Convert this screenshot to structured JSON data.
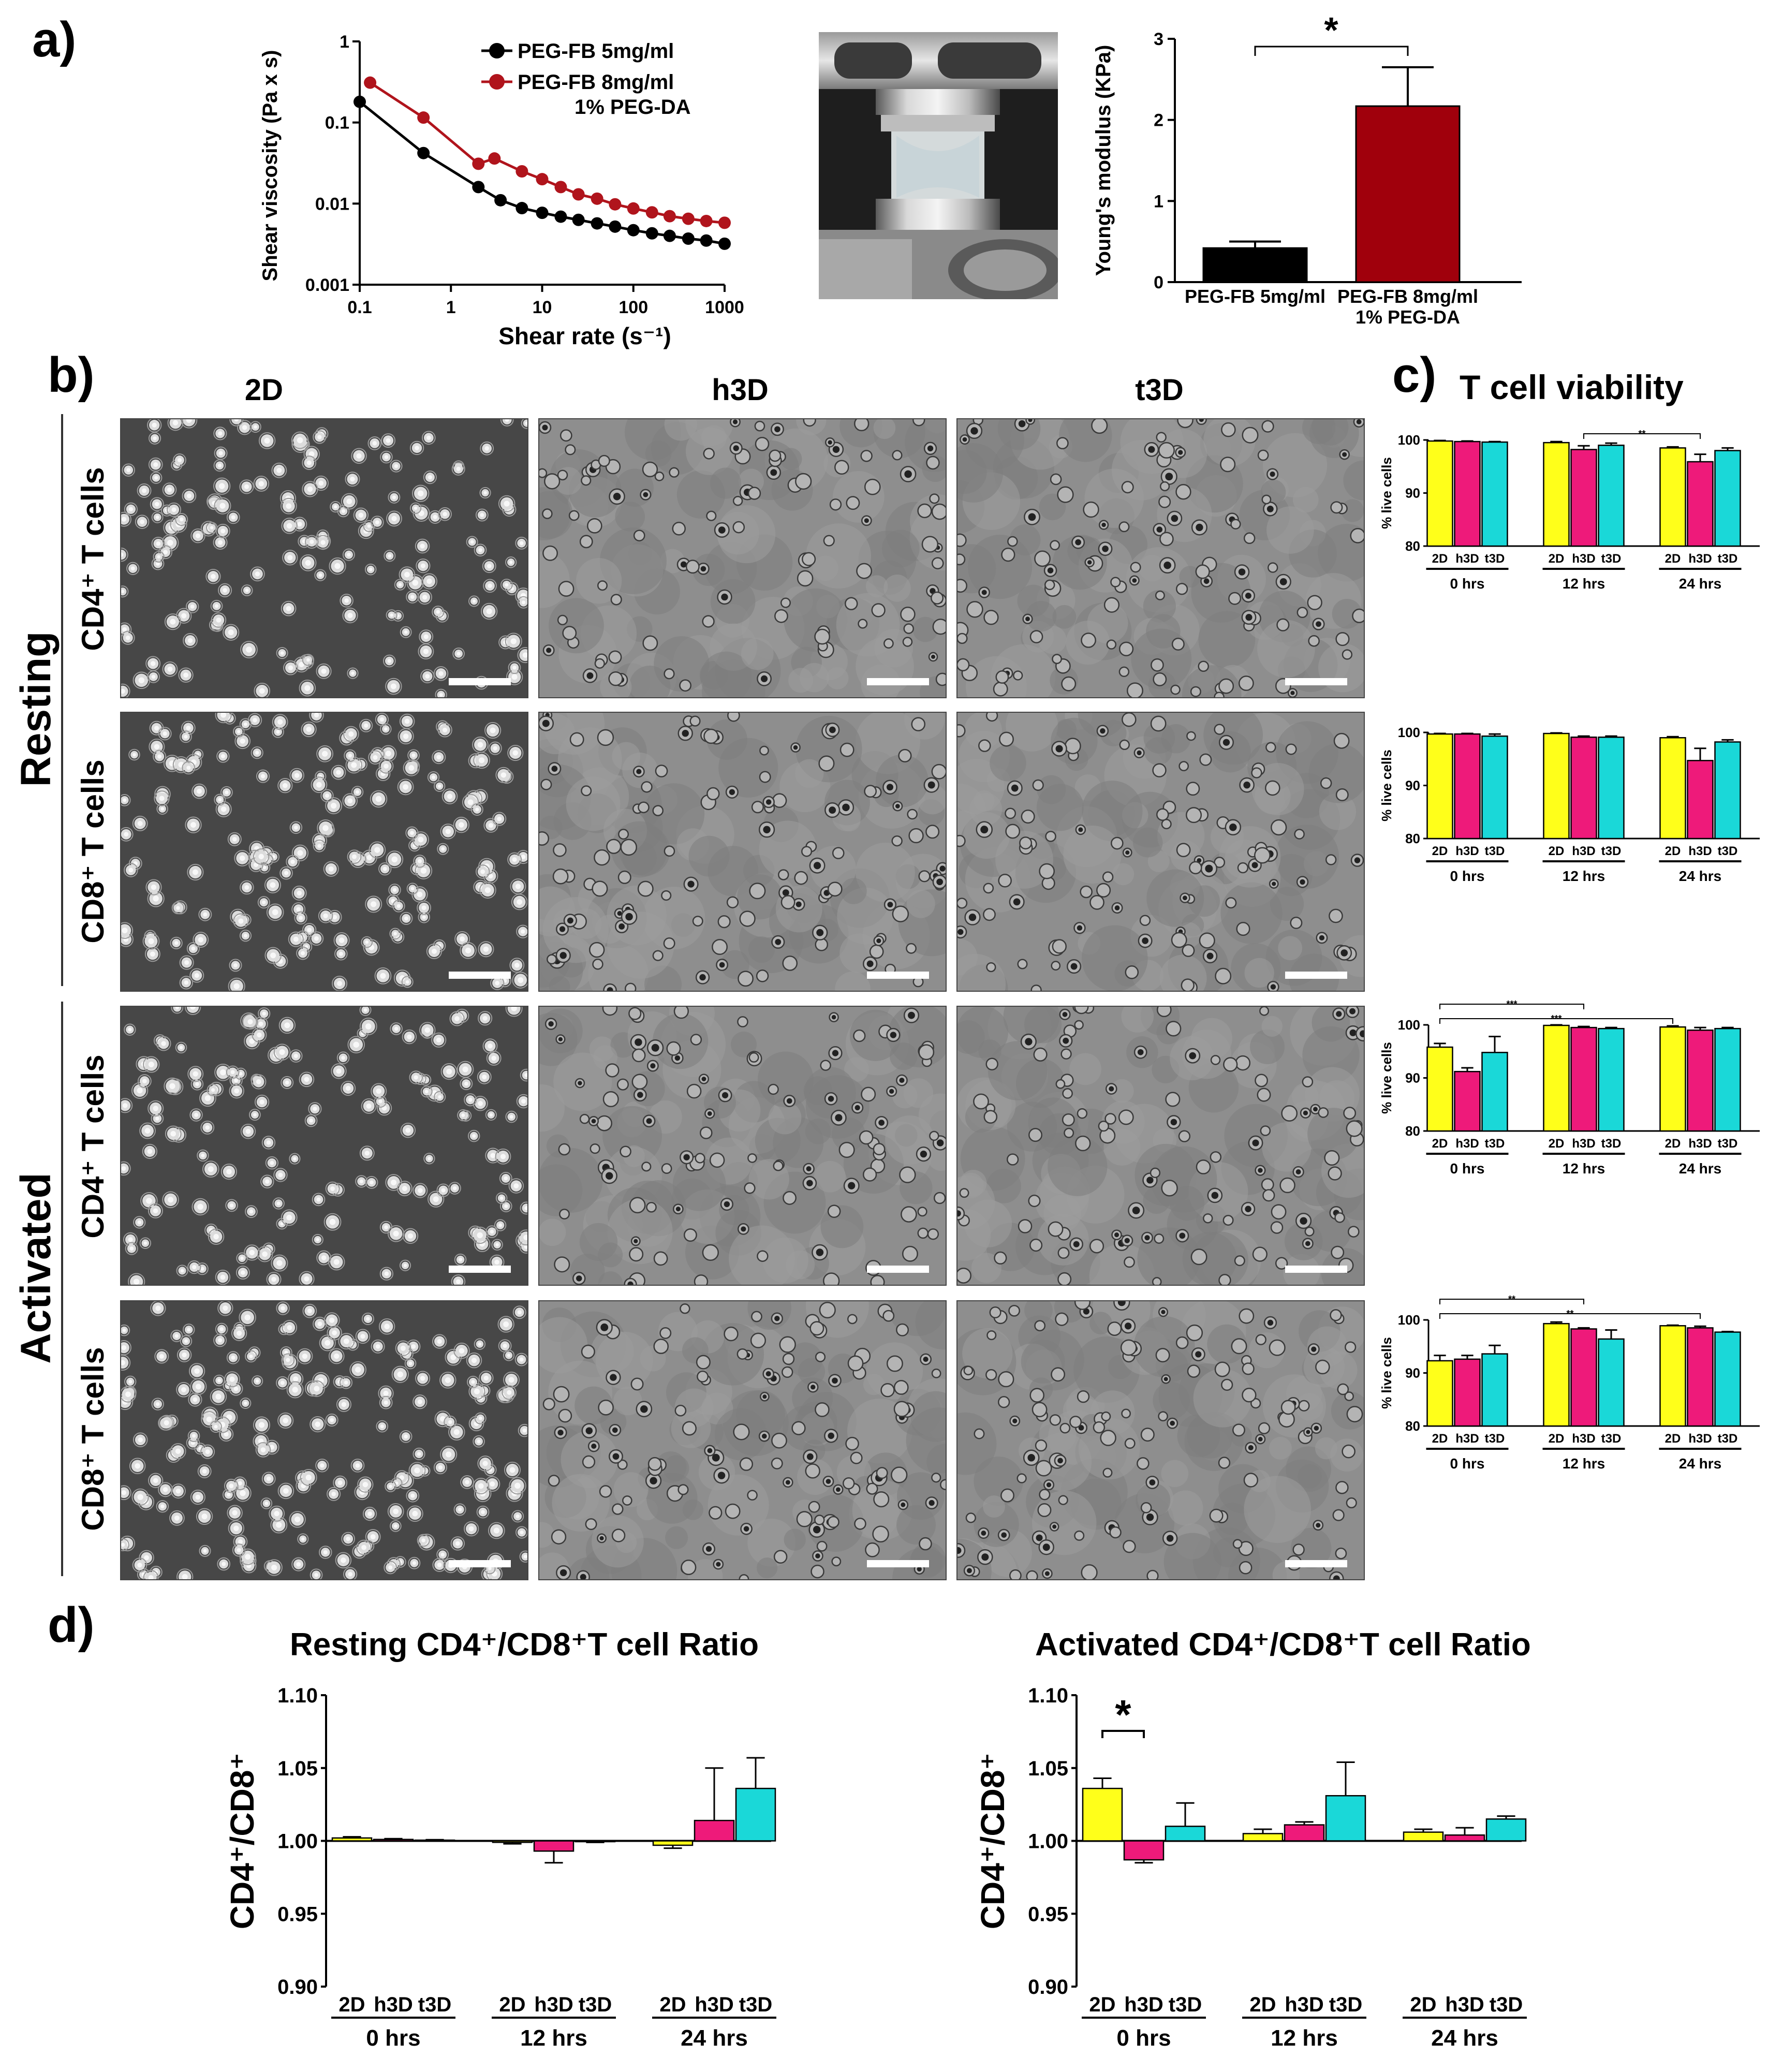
{
  "panels": {
    "a": "a)",
    "b": "b)",
    "c": "c)",
    "d": "d)"
  },
  "colors": {
    "c2D": "#ffff1a",
    "ch3D": "#ee1a7a",
    "ct3D": "#1ad8d8",
    "black": "#000000",
    "darkred": "#a0000c",
    "red_line": "#b0141c"
  },
  "chart_data": [
    {
      "id": "viscosity",
      "type": "line",
      "title": "",
      "xlabel": "Shear rate (s⁻¹)",
      "ylabel": "Shear viscosity (Pa x s)",
      "xscale": "log",
      "yscale": "log",
      "xlim": [
        0.1,
        1000
      ],
      "ylim": [
        0.001,
        1
      ],
      "xticks": [
        "0.1",
        "1",
        "10",
        "100",
        "1000"
      ],
      "yticks": [
        "0.001",
        "0.01",
        "0.1",
        "1"
      ],
      "legend": [
        "PEG-FB  5mg/ml",
        "PEG-FB  8mg/ml",
        "1% PEG-DA"
      ],
      "series": [
        {
          "name": "PEG-FB 5mg/ml",
          "color": "#000000",
          "x": [
            0.1,
            0.5,
            2,
            3.5,
            6,
            10,
            16,
            25,
            40,
            63,
            100,
            160,
            250,
            400,
            630,
            1000
          ],
          "y": [
            0.18,
            0.042,
            0.016,
            0.011,
            0.0088,
            0.0077,
            0.0069,
            0.0063,
            0.0057,
            0.0052,
            0.0047,
            0.0043,
            0.004,
            0.0037,
            0.0035,
            0.0032
          ]
        },
        {
          "name": "PEG-FB 8mg/ml 1% PEG-DA",
          "color": "#b0141c",
          "x": [
            0.13,
            0.5,
            2,
            3,
            6,
            10,
            16,
            25,
            40,
            63,
            100,
            160,
            250,
            400,
            630,
            1000
          ],
          "y": [
            0.31,
            0.115,
            0.031,
            0.036,
            0.025,
            0.02,
            0.016,
            0.013,
            0.0115,
            0.0098,
            0.0087,
            0.0078,
            0.007,
            0.0065,
            0.0061,
            0.0058
          ]
        }
      ]
    },
    {
      "id": "youngs",
      "type": "bar",
      "ylabel": "Young's modulus (KPa)",
      "ylim": [
        0,
        3
      ],
      "yticks": [
        "0",
        "1",
        "2",
        "3"
      ],
      "categories": [
        "PEG-FB 5mg/ml",
        "PEG-FB 8mg/ml"
      ],
      "category_sub": [
        "",
        "1% PEG-DA"
      ],
      "values": [
        0.42,
        2.17
      ],
      "errors": [
        0.08,
        0.48
      ],
      "colors": [
        "#000000",
        "#a0000c"
      ],
      "significance": "*"
    },
    {
      "id": "viability",
      "type": "bar",
      "title": "T cell viability",
      "ylabel": "% live cells",
      "ylim": [
        80,
        100
      ],
      "yticks": [
        "80",
        "90",
        "100"
      ],
      "groups": [
        "0 hrs",
        "12 hrs",
        "24 hrs"
      ],
      "conditions": [
        "2D",
        "h3D",
        "t3D"
      ],
      "subplots": [
        {
          "name": "Resting CD4",
          "values": [
            [
              99.8,
              99.7,
              99.6
            ],
            [
              99.5,
              98.2,
              99.0
            ],
            [
              98.5,
              95.9,
              98.0
            ]
          ],
          "errors": [
            [
              0.1,
              0.1,
              0.1
            ],
            [
              0.2,
              0.7,
              0.4
            ],
            [
              0.2,
              1.4,
              0.5
            ]
          ],
          "sig": [
            {
              "from": [
                1,
                1
              ],
              "to": [
                2,
                1
              ],
              "label": "**"
            }
          ]
        },
        {
          "name": "Resting CD8",
          "values": [
            [
              99.7,
              99.7,
              99.3
            ],
            [
              99.8,
              99.1,
              99.1
            ],
            [
              99.0,
              94.7,
              98.2
            ]
          ],
          "errors": [
            [
              0.1,
              0.1,
              0.4
            ],
            [
              0.1,
              0.2,
              0.2
            ],
            [
              0.2,
              2.3,
              0.4
            ]
          ],
          "sig": []
        },
        {
          "name": "Activated CD4",
          "values": [
            [
              95.8,
              91.2,
              94.8
            ],
            [
              99.9,
              99.5,
              99.3
            ],
            [
              99.6,
              99.0,
              99.3
            ]
          ],
          "errors": [
            [
              0.7,
              0.7,
              3.0
            ],
            [
              0.1,
              0.2,
              0.2
            ],
            [
              0.2,
              0.5,
              0.2
            ]
          ],
          "sig": [
            {
              "from": [
                0,
                0
              ],
              "to": [
                2,
                0
              ],
              "label": "***"
            },
            {
              "from": [
                0,
                0
              ],
              "to": [
                1,
                1
              ],
              "label": "***"
            }
          ]
        },
        {
          "name": "Activated CD8",
          "values": [
            [
              92.3,
              92.6,
              93.6
            ],
            [
              99.3,
              98.3,
              96.4
            ],
            [
              98.9,
              98.5,
              97.7
            ]
          ],
          "errors": [
            [
              1.0,
              0.7,
              1.6
            ],
            [
              0.3,
              0.2,
              1.7
            ],
            [
              0.1,
              0.3,
              0.1
            ]
          ],
          "sig": [
            {
              "from": [
                0,
                0
              ],
              "to": [
                2,
                1
              ],
              "label": "**"
            },
            {
              "from": [
                0,
                0
              ],
              "to": [
                1,
                1
              ],
              "label": "**"
            }
          ]
        }
      ]
    },
    {
      "id": "resting_ratio",
      "type": "bar",
      "title": "Resting CD4⁺/CD8⁺T cell Ratio",
      "ylabel": "CD4⁺/CD8⁺",
      "ylim": [
        0.9,
        1.1
      ],
      "yticks": [
        "0.90",
        "0.95",
        "1.00",
        "1.05",
        "1.10"
      ],
      "groups": [
        "0 hrs",
        "12 hrs",
        "24 hrs"
      ],
      "conditions": [
        "2D",
        "h3D",
        "t3D"
      ],
      "values": [
        [
          1.002,
          1.001,
          1.0005
        ],
        [
          0.999,
          0.993,
          0.9995
        ],
        [
          0.997,
          1.014,
          1.036
        ]
      ],
      "errors": [
        [
          0.0008,
          0.0005,
          0.0003
        ],
        [
          0.001,
          0.008,
          0.0005
        ],
        [
          0.002,
          0.036,
          0.021
        ]
      ]
    },
    {
      "id": "activated_ratio",
      "type": "bar",
      "title": "Activated CD4⁺/CD8⁺T cell Ratio",
      "ylabel": "CD4⁺/CD8⁺",
      "ylim": [
        0.9,
        1.1
      ],
      "yticks": [
        "0.90",
        "0.95",
        "1.00",
        "1.05",
        "1.10"
      ],
      "groups": [
        "0 hrs",
        "12 hrs",
        "24 hrs"
      ],
      "conditions": [
        "2D",
        "h3D",
        "t3D"
      ],
      "values": [
        [
          1.036,
          0.987,
          1.01
        ],
        [
          1.005,
          1.011,
          1.031
        ],
        [
          1.006,
          1.004,
          1.015
        ]
      ],
      "errors": [
        [
          0.007,
          0.002,
          0.016
        ],
        [
          0.003,
          0.002,
          0.023
        ],
        [
          0.002,
          0.005,
          0.002
        ]
      ],
      "significance": "*"
    }
  ],
  "micrographs": {
    "columns": [
      "2D",
      "h3D",
      "t3D"
    ],
    "rows": [
      "CD4⁺ T cells",
      "CD8⁺ T cells",
      "CD4⁺ T cells",
      "CD8⁺ T cells"
    ],
    "groups": [
      "Resting",
      "Activated"
    ]
  }
}
